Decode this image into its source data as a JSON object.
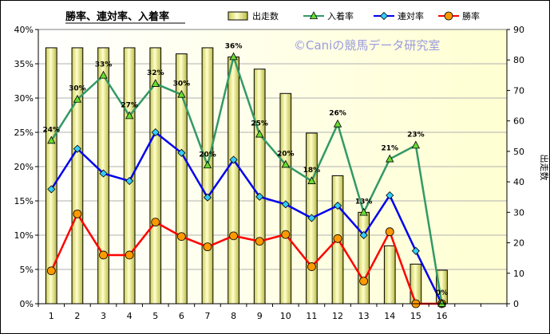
{
  "chart_data": {
    "type": "bar",
    "title": "勝率、連対率、入着率",
    "watermark": "©Caniの競馬データ研究室",
    "y2label": "出走数",
    "categories": [
      "1",
      "2",
      "3",
      "4",
      "5",
      "6",
      "7",
      "8",
      "9",
      "10",
      "11",
      "12",
      "13",
      "14",
      "15",
      "16"
    ],
    "y_ticks": [
      "0%",
      "5%",
      "10%",
      "15%",
      "20%",
      "25%",
      "30%",
      "35%",
      "40%"
    ],
    "y2_ticks": [
      "0",
      "10",
      "20",
      "30",
      "40",
      "50",
      "60",
      "70",
      "80",
      "90"
    ],
    "ylim": [
      0,
      40
    ],
    "y2lim": [
      0,
      90
    ],
    "grid": true,
    "legend_position": "top",
    "bars": {
      "name": "出走数",
      "axis": "right",
      "color": "#eeee88",
      "values": [
        84,
        84,
        84,
        84,
        84,
        82,
        84,
        81,
        77,
        69,
        56,
        42,
        30,
        19,
        13,
        11
      ]
    },
    "series": [
      {
        "name": "入着率",
        "color": "#339966",
        "marker": "triangle",
        "values": [
          23.8,
          29.8,
          33.3,
          27.4,
          32.1,
          30.5,
          20.2,
          36.0,
          24.7,
          20.3,
          17.9,
          26.2,
          13.3,
          21.1,
          23.1,
          0
        ],
        "labels": [
          "24%",
          "30%",
          "33%",
          "27%",
          "32%",
          "30%",
          "20%",
          "36%",
          "25%",
          "20%",
          "18%",
          "26%",
          "13%",
          "21%",
          "23%",
          "0%"
        ]
      },
      {
        "name": "連対率",
        "color": "#0000ee",
        "marker": "diamond",
        "values": [
          16.7,
          22.6,
          19.0,
          17.9,
          25.0,
          22.0,
          15.5,
          21.0,
          15.6,
          14.5,
          12.5,
          14.3,
          10.0,
          15.8,
          7.7,
          0
        ]
      },
      {
        "name": "勝率",
        "color": "#ff0000",
        "marker": "circle",
        "values": [
          4.8,
          13.1,
          7.1,
          7.1,
          11.9,
          9.8,
          8.3,
          9.9,
          9.1,
          10.1,
          5.4,
          9.5,
          3.3,
          10.5,
          0,
          0
        ]
      }
    ]
  }
}
